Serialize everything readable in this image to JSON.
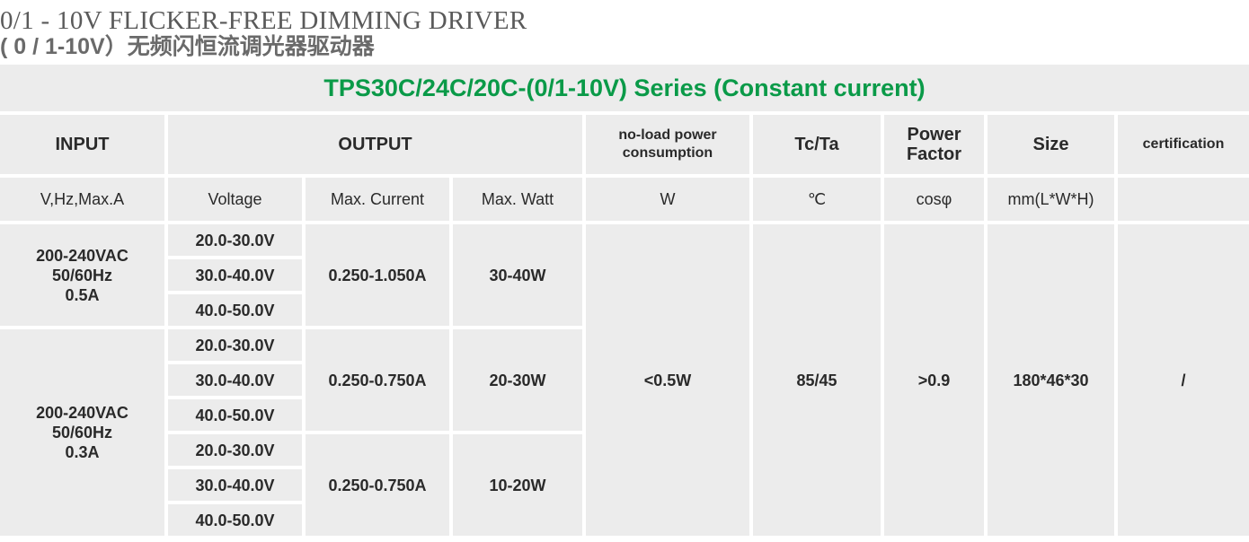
{
  "heading": {
    "en": "0/1 - 10V  FLICKER-FREE DIMMING DRIVER",
    "cn": "( 0 / 1-10V）无频闪恒流调光器驱动器"
  },
  "table": {
    "title": "TPS30C/24C/20C-(0/1-10V) Series (Constant current)",
    "headers": {
      "input": "INPUT",
      "output": "OUTPUT",
      "noload": "no-load power\nconsumption",
      "tcta": "Tc/Ta",
      "pf": "Power\nFactor",
      "size": "Size",
      "cert": "certification"
    },
    "units": {
      "input": "V,Hz,Max.A",
      "voltage": "Voltage",
      "current": "Max. Current",
      "watt": "Max. Watt",
      "noload": "W",
      "tcta": "℃",
      "pf": "cosφ",
      "size": "mm(L*W*H)",
      "cert": ""
    },
    "inputs": [
      "200-240VAC\n50/60Hz\n0.5A",
      "200-240VAC\n50/60Hz\n0.3A"
    ],
    "voltages": [
      "20.0-30.0V",
      "30.0-40.0V",
      "40.0-50.0V",
      "20.0-30.0V",
      "30.0-40.0V",
      "40.0-50.0V",
      "20.0-30.0V",
      "30.0-40.0V",
      "40.0-50.0V"
    ],
    "currents": [
      "0.250-1.050A",
      "0.250-0.750A",
      "0.250-0.750A"
    ],
    "watts": [
      "30-40W",
      "20-30W",
      "10-20W"
    ],
    "noload": "<0.5W",
    "tcta": "85/45",
    "pf": ">0.9",
    "size": "180*46*30",
    "cert": "/"
  }
}
